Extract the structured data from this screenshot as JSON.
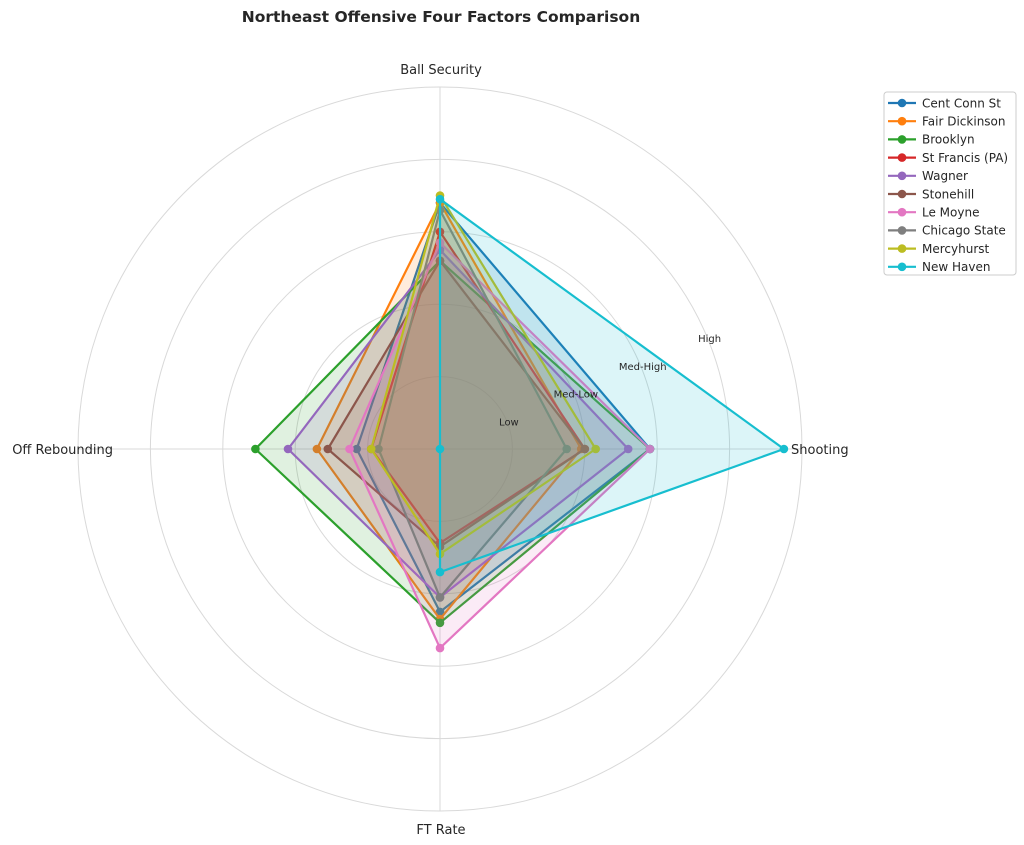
{
  "chart_data": {
    "type": "radar",
    "title": "Northeast Offensive Four Factors Comparison",
    "axes": [
      "Shooting",
      "Ball Security",
      "Off Rebounding",
      "FT Rate"
    ],
    "ring_labels": [
      "Low",
      "Med-Low",
      "Med-High",
      "High"
    ],
    "rmax": 5,
    "grid": true,
    "legend_position": "upper-right",
    "series": [
      {
        "name": "Cent Conn St",
        "color": "#1f77b4",
        "values": [
          2.9,
          3.4,
          1.15,
          2.25
        ]
      },
      {
        "name": "Fair Dickinson",
        "color": "#ff7f0e",
        "values": [
          1.95,
          3.4,
          1.7,
          2.35
        ]
      },
      {
        "name": "Brooklyn",
        "color": "#2ca02c",
        "values": [
          2.9,
          2.6,
          2.55,
          2.4
        ]
      },
      {
        "name": "St Francis (PA)",
        "color": "#d62728",
        "values": [
          2.0,
          3.0,
          0.95,
          1.3
        ]
      },
      {
        "name": "Wagner",
        "color": "#9467bd",
        "values": [
          2.6,
          2.75,
          2.1,
          2.05
        ]
      },
      {
        "name": "Stonehill",
        "color": "#8c564b",
        "values": [
          2.0,
          2.6,
          1.55,
          1.35
        ]
      },
      {
        "name": "Le Moyne",
        "color": "#e377c2",
        "values": [
          2.9,
          2.85,
          1.25,
          2.75
        ]
      },
      {
        "name": "Chicago State",
        "color": "#7f7f7f",
        "values": [
          1.75,
          3.3,
          0.85,
          2.05
        ]
      },
      {
        "name": "Mercyhurst",
        "color": "#bcbd22",
        "values": [
          2.15,
          3.5,
          0.95,
          1.45
        ]
      },
      {
        "name": "New Haven",
        "color": "#17becf",
        "values": [
          4.75,
          3.45,
          0.0,
          1.7
        ]
      }
    ]
  }
}
